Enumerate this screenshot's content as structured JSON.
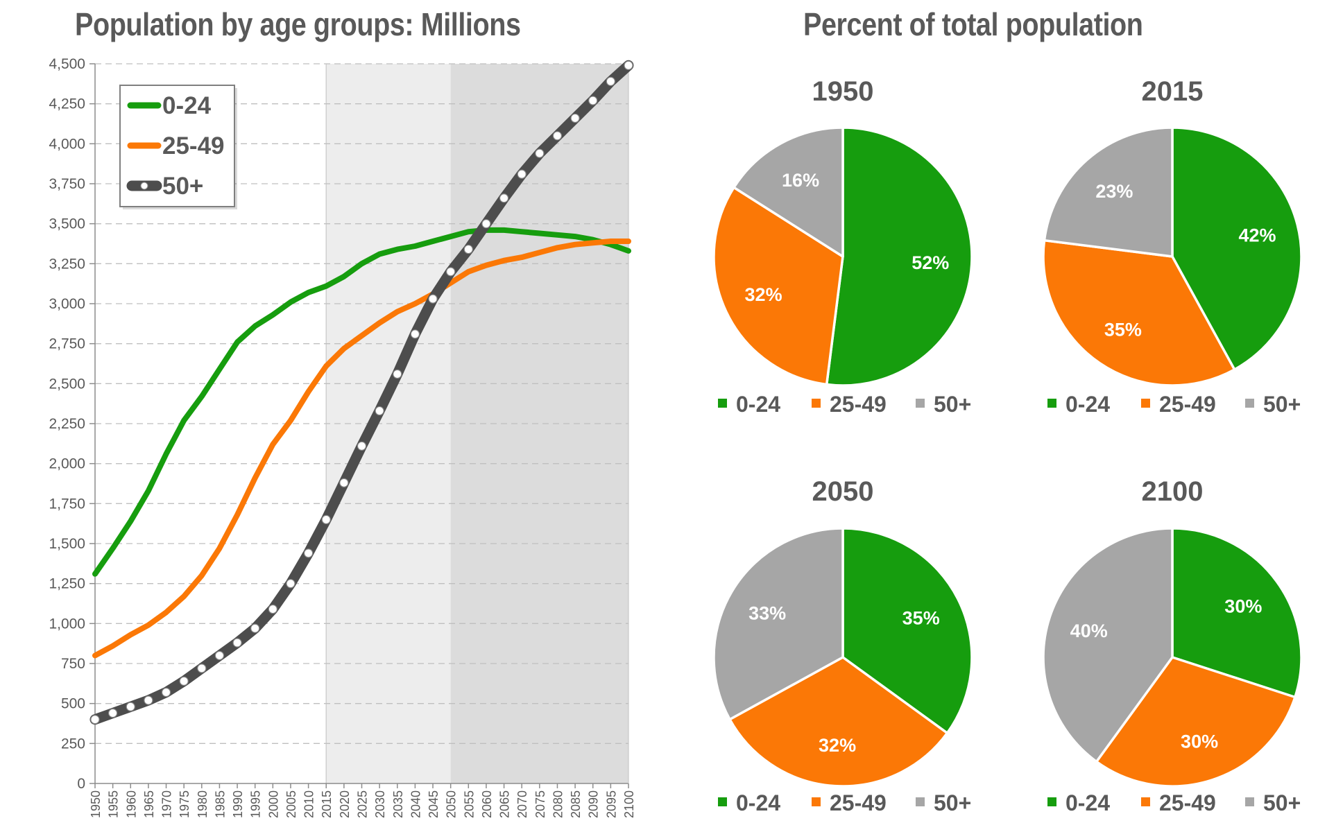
{
  "titles": {
    "left": "Population by age groups: Millions",
    "right": "Percent of total population"
  },
  "colors": {
    "g0_24": "#169d0e",
    "g25_49": "#fb7806",
    "g50": "#4d4d4d",
    "pie50": "#a6a6a6",
    "shade_light": "#ededed",
    "shade_dark": "#dcdcdc",
    "grid": "#bfbfbf",
    "text": "#595959"
  },
  "chart_data": [
    {
      "type": "line",
      "title": "Population by age groups: Millions",
      "xlabel": "",
      "ylabel": "",
      "x": [
        1950,
        1955,
        1960,
        1965,
        1970,
        1975,
        1980,
        1985,
        1990,
        1995,
        2000,
        2005,
        2010,
        2015,
        2020,
        2025,
        2030,
        2035,
        2040,
        2045,
        2050,
        2055,
        2060,
        2065,
        2070,
        2075,
        2080,
        2085,
        2090,
        2095,
        2100
      ],
      "ylim": [
        0,
        4500
      ],
      "yticks": [
        0,
        250,
        500,
        750,
        1000,
        1250,
        1500,
        1750,
        2000,
        2250,
        2500,
        2750,
        3000,
        3250,
        3500,
        3750,
        4000,
        4250,
        4500
      ],
      "ytick_labels": [
        "0",
        "250",
        "500",
        "750",
        "1,000",
        "1,250",
        "1,500",
        "1,750",
        "2,000",
        "2,250",
        "2,500",
        "2,750",
        "3,000",
        "3,250",
        "3,500",
        "3,750",
        "4,000",
        "4,250",
        "4,500"
      ],
      "grid": true,
      "legend": "top-left",
      "shaded_regions": [
        {
          "from": 2015,
          "to": 2050,
          "shade": "light"
        },
        {
          "from": 2050,
          "to": 2100,
          "shade": "dark"
        }
      ],
      "series": [
        {
          "name": "0-24",
          "color": "#169d0e",
          "values": [
            1310,
            1470,
            1640,
            1830,
            2060,
            2270,
            2420,
            2590,
            2760,
            2860,
            2930,
            3010,
            3070,
            3110,
            3170,
            3250,
            3310,
            3340,
            3360,
            3390,
            3420,
            3450,
            3460,
            3460,
            3450,
            3440,
            3430,
            3420,
            3400,
            3370,
            3330
          ]
        },
        {
          "name": "25-49",
          "color": "#fb7806",
          "values": [
            800,
            860,
            930,
            990,
            1070,
            1170,
            1300,
            1470,
            1680,
            1910,
            2120,
            2270,
            2450,
            2610,
            2720,
            2800,
            2880,
            2950,
            3000,
            3060,
            3130,
            3200,
            3240,
            3270,
            3290,
            3320,
            3350,
            3370,
            3380,
            3390,
            3390
          ]
        },
        {
          "name": "50+",
          "color": "#4d4d4d",
          "markers": true,
          "values": [
            400,
            440,
            480,
            520,
            570,
            640,
            720,
            800,
            880,
            970,
            1090,
            1250,
            1440,
            1650,
            1880,
            2110,
            2330,
            2560,
            2810,
            3030,
            3200,
            3340,
            3500,
            3660,
            3810,
            3940,
            4050,
            4160,
            4270,
            4390,
            4490
          ]
        }
      ]
    },
    {
      "type": "pie",
      "title": "1950",
      "labels": [
        "0-24",
        "25-49",
        "50+"
      ],
      "values": [
        52,
        32,
        16
      ],
      "value_labels": [
        "52%",
        "32%",
        "16%"
      ],
      "legend": "bottom"
    },
    {
      "type": "pie",
      "title": "2015",
      "labels": [
        "0-24",
        "25-49",
        "50+"
      ],
      "values": [
        42,
        35,
        23
      ],
      "value_labels": [
        "42%",
        "35%",
        "23%"
      ],
      "legend": "bottom"
    },
    {
      "type": "pie",
      "title": "2050",
      "labels": [
        "0-24",
        "25-49",
        "50+"
      ],
      "values": [
        35,
        32,
        33
      ],
      "value_labels": [
        "35%",
        "32%",
        "33%"
      ],
      "legend": "bottom"
    },
    {
      "type": "pie",
      "title": "2100",
      "labels": [
        "0-24",
        "25-49",
        "50+"
      ],
      "values": [
        30,
        30,
        40
      ],
      "value_labels": [
        "30%",
        "30%",
        "40%"
      ],
      "legend": "bottom"
    }
  ]
}
